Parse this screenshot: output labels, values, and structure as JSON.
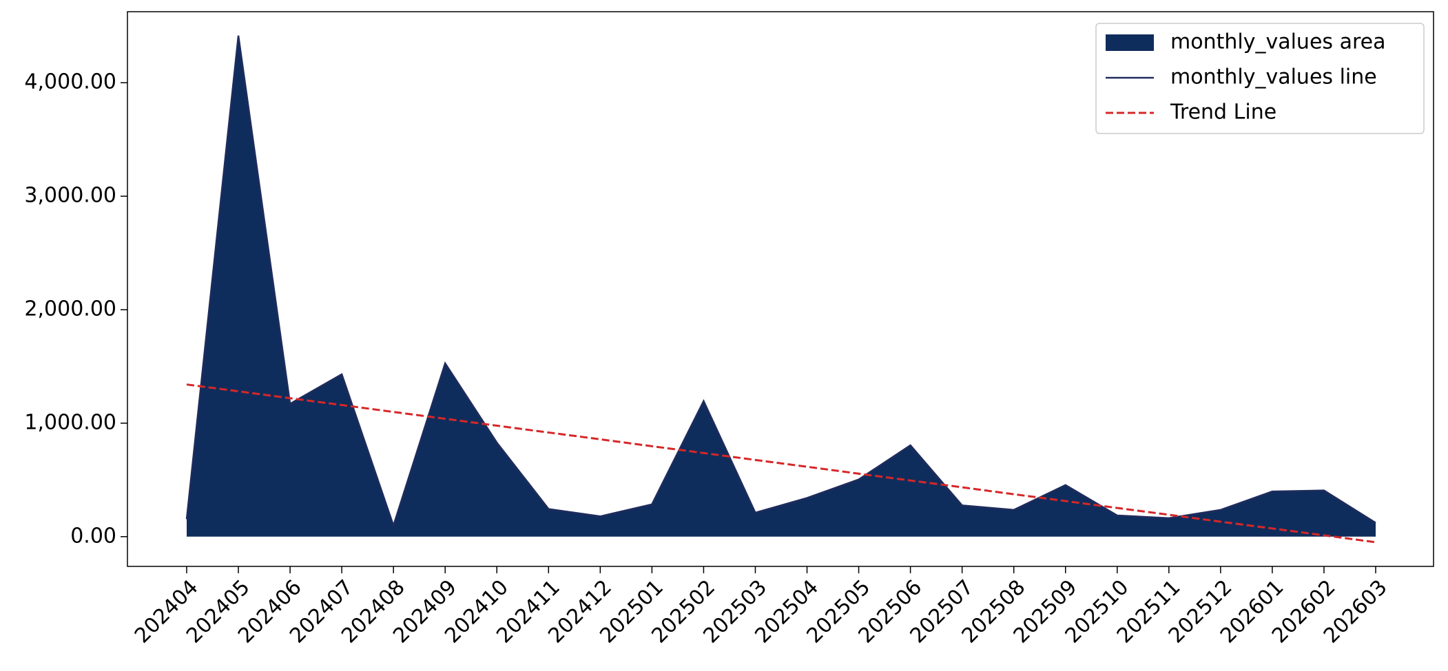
{
  "chart_data": {
    "type": "area",
    "categories": [
      "202404",
      "202405",
      "202406",
      "202407",
      "202408",
      "202409",
      "202410",
      "202411",
      "202412",
      "202501",
      "202502",
      "202503",
      "202504",
      "202505",
      "202506",
      "202507",
      "202508",
      "202509",
      "202510",
      "202511",
      "202512",
      "202601",
      "202602",
      "202603"
    ],
    "series": [
      {
        "name": "monthly_values area",
        "color": "#0f2d5c",
        "style": "area",
        "values": [
          154,
          4415,
          1171,
          1431,
          98,
          1528,
          829,
          244,
          179,
          285,
          1195,
          211,
          341,
          504,
          805,
          276,
          236,
          455,
          187,
          163,
          236,
          398,
          407,
          122
        ]
      },
      {
        "name": "monthly_values line",
        "color": "#1f2c5c",
        "style": "line",
        "values": [
          154,
          4415,
          1171,
          1431,
          98,
          1528,
          829,
          244,
          179,
          285,
          1195,
          211,
          341,
          504,
          805,
          276,
          236,
          455,
          187,
          163,
          236,
          398,
          407,
          122
        ]
      },
      {
        "name": "Trend Line",
        "color": "#d62728",
        "style": "dashed",
        "values": [
          1341,
          1281,
          1220,
          1160,
          1099,
          1039,
          978,
          918,
          858,
          797,
          737,
          676,
          616,
          555,
          495,
          435,
          374,
          314,
          253,
          193,
          132,
          72,
          12,
          -49
        ]
      }
    ],
    "ylim": [
      -262,
      4626
    ],
    "yticks": [
      {
        "value": 0,
        "label": "0.00"
      },
      {
        "value": 1000,
        "label": "1,000.00"
      },
      {
        "value": 2000,
        "label": "2,000.00"
      },
      {
        "value": 3000,
        "label": "3,000.00"
      },
      {
        "value": 4000,
        "label": "4,000.00"
      }
    ],
    "legend": "upper right"
  }
}
